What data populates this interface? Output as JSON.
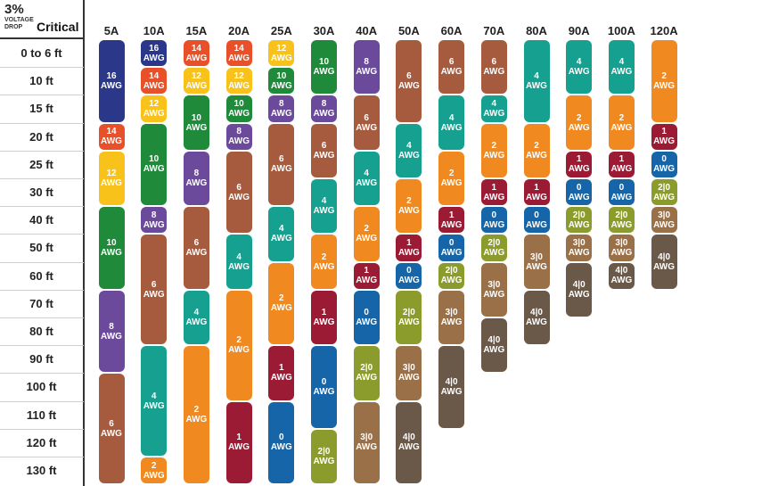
{
  "header": {
    "percent": "3%",
    "voltage": "VOLTAGE",
    "drop": "DROP",
    "critical": "Critical"
  },
  "chart_data": {
    "type": "table",
    "columns": [
      "5A",
      "10A",
      "15A",
      "20A",
      "25A",
      "30A",
      "40A",
      "50A",
      "60A",
      "70A",
      "80A",
      "90A",
      "100A",
      "120A"
    ],
    "rows": [
      "0 to 6 ft",
      "10 ft",
      "15 ft",
      "20 ft",
      "25 ft",
      "30 ft",
      "40 ft",
      "50 ft",
      "60 ft",
      "70 ft",
      "80 ft",
      "90 ft",
      "100 ft",
      "110 ft",
      "120 ft",
      "130 ft"
    ],
    "unit": "AWG",
    "colors": {
      "16": "#2b3788",
      "14": "#e8502a",
      "12": "#f8c21a",
      "10": "#1e8a3a",
      "8": "#6b4a9c",
      "6": "#a65b3e",
      "4": "#15a08f",
      "2": "#f0891f",
      "1": "#9b1b34",
      "0": "#1565a8",
      "2|0": "#8c9c2c",
      "3|0": "#9a7048",
      "4|0": "#6a5848"
    },
    "cells": [
      [
        {
          "g": "16",
          "s": 0,
          "e": 3
        },
        {
          "g": "14",
          "s": 3,
          "e": 4
        },
        {
          "g": "12",
          "s": 4,
          "e": 6
        },
        {
          "g": "10",
          "s": 6,
          "e": 9
        },
        {
          "g": "8",
          "s": 9,
          "e": 12
        },
        {
          "g": "6",
          "s": 12,
          "e": 16
        }
      ],
      [
        {
          "g": "16",
          "s": 0,
          "e": 1
        },
        {
          "g": "14",
          "s": 1,
          "e": 2
        },
        {
          "g": "12",
          "s": 2,
          "e": 3
        },
        {
          "g": "10",
          "s": 3,
          "e": 6
        },
        {
          "g": "8",
          "s": 6,
          "e": 7
        },
        {
          "g": "6",
          "s": 7,
          "e": 11
        },
        {
          "g": "4",
          "s": 11,
          "e": 15
        },
        {
          "g": "2",
          "s": 15,
          "e": 16
        }
      ],
      [
        {
          "g": "14",
          "s": 0,
          "e": 1
        },
        {
          "g": "12",
          "s": 1,
          "e": 2
        },
        {
          "g": "10",
          "s": 2,
          "e": 4
        },
        {
          "g": "8",
          "s": 4,
          "e": 6
        },
        {
          "g": "6",
          "s": 6,
          "e": 9
        },
        {
          "g": "4",
          "s": 9,
          "e": 11
        },
        {
          "g": "2",
          "s": 11,
          "e": 16
        }
      ],
      [
        {
          "g": "14",
          "s": 0,
          "e": 1
        },
        {
          "g": "12",
          "s": 1,
          "e": 2
        },
        {
          "g": "10",
          "s": 2,
          "e": 3
        },
        {
          "g": "8",
          "s": 3,
          "e": 4
        },
        {
          "g": "6",
          "s": 4,
          "e": 7
        },
        {
          "g": "4",
          "s": 7,
          "e": 9
        },
        {
          "g": "2",
          "s": 9,
          "e": 13
        },
        {
          "g": "1",
          "s": 13,
          "e": 16
        }
      ],
      [
        {
          "g": "12",
          "s": 0,
          "e": 1
        },
        {
          "g": "10",
          "s": 1,
          "e": 2
        },
        {
          "g": "8",
          "s": 2,
          "e": 3
        },
        {
          "g": "6",
          "s": 3,
          "e": 6
        },
        {
          "g": "4",
          "s": 6,
          "e": 8
        },
        {
          "g": "2",
          "s": 8,
          "e": 11
        },
        {
          "g": "1",
          "s": 11,
          "e": 13
        },
        {
          "g": "0",
          "s": 13,
          "e": 16
        }
      ],
      [
        {
          "g": "10",
          "s": 0,
          "e": 2
        },
        {
          "g": "8",
          "s": 2,
          "e": 3
        },
        {
          "g": "6",
          "s": 3,
          "e": 5
        },
        {
          "g": "4",
          "s": 5,
          "e": 7
        },
        {
          "g": "2",
          "s": 7,
          "e": 9
        },
        {
          "g": "1",
          "s": 9,
          "e": 11
        },
        {
          "g": "0",
          "s": 11,
          "e": 14
        },
        {
          "g": "2|0",
          "s": 14,
          "e": 16
        }
      ],
      [
        {
          "g": "8",
          "s": 0,
          "e": 2
        },
        {
          "g": "6",
          "s": 2,
          "e": 4
        },
        {
          "g": "4",
          "s": 4,
          "e": 6
        },
        {
          "g": "2",
          "s": 6,
          "e": 8
        },
        {
          "g": "1",
          "s": 8,
          "e": 9
        },
        {
          "g": "0",
          "s": 9,
          "e": 11
        },
        {
          "g": "2|0",
          "s": 11,
          "e": 13
        },
        {
          "g": "3|0",
          "s": 13,
          "e": 16
        }
      ],
      [
        {
          "g": "6",
          "s": 0,
          "e": 3
        },
        {
          "g": "4",
          "s": 3,
          "e": 5
        },
        {
          "g": "2",
          "s": 5,
          "e": 7
        },
        {
          "g": "1",
          "s": 7,
          "e": 8
        },
        {
          "g": "0",
          "s": 8,
          "e": 9
        },
        {
          "g": "2|0",
          "s": 9,
          "e": 11
        },
        {
          "g": "3|0",
          "s": 11,
          "e": 13
        },
        {
          "g": "4|0",
          "s": 13,
          "e": 16
        }
      ],
      [
        {
          "g": "6",
          "s": 0,
          "e": 2
        },
        {
          "g": "4",
          "s": 2,
          "e": 4
        },
        {
          "g": "2",
          "s": 4,
          "e": 6
        },
        {
          "g": "1",
          "s": 6,
          "e": 7
        },
        {
          "g": "0",
          "s": 7,
          "e": 8
        },
        {
          "g": "2|0",
          "s": 8,
          "e": 9
        },
        {
          "g": "3|0",
          "s": 9,
          "e": 11
        },
        {
          "g": "4|0",
          "s": 11,
          "e": 14
        }
      ],
      [
        {
          "g": "6",
          "s": 0,
          "e": 2
        },
        {
          "g": "4",
          "s": 2,
          "e": 3
        },
        {
          "g": "2",
          "s": 3,
          "e": 5
        },
        {
          "g": "1",
          "s": 5,
          "e": 6
        },
        {
          "g": "0",
          "s": 6,
          "e": 7
        },
        {
          "g": "2|0",
          "s": 7,
          "e": 8
        },
        {
          "g": "3|0",
          "s": 8,
          "e": 10
        },
        {
          "g": "4|0",
          "s": 10,
          "e": 12
        }
      ],
      [
        {
          "g": "4",
          "s": 0,
          "e": 3
        },
        {
          "g": "2",
          "s": 3,
          "e": 5
        },
        {
          "g": "1",
          "s": 5,
          "e": 6
        },
        {
          "g": "0",
          "s": 6,
          "e": 7
        },
        {
          "g": "3|0",
          "s": 7,
          "e": 9
        },
        {
          "g": "4|0",
          "s": 9,
          "e": 11
        }
      ],
      [
        {
          "g": "4",
          "s": 0,
          "e": 2
        },
        {
          "g": "2",
          "s": 2,
          "e": 4
        },
        {
          "g": "1",
          "s": 4,
          "e": 5
        },
        {
          "g": "0",
          "s": 5,
          "e": 6
        },
        {
          "g": "2|0",
          "s": 6,
          "e": 7
        },
        {
          "g": "3|0",
          "s": 7,
          "e": 8
        },
        {
          "g": "4|0",
          "s": 8,
          "e": 10
        }
      ],
      [
        {
          "g": "4",
          "s": 0,
          "e": 2
        },
        {
          "g": "2",
          "s": 2,
          "e": 4
        },
        {
          "g": "1",
          "s": 4,
          "e": 5
        },
        {
          "g": "0",
          "s": 5,
          "e": 6
        },
        {
          "g": "2|0",
          "s": 6,
          "e": 7
        },
        {
          "g": "3|0",
          "s": 7,
          "e": 8
        },
        {
          "g": "4|0",
          "s": 8,
          "e": 9
        }
      ],
      [
        {
          "g": "2",
          "s": 0,
          "e": 3
        },
        {
          "g": "1",
          "s": 3,
          "e": 4
        },
        {
          "g": "0",
          "s": 4,
          "e": 5
        },
        {
          "g": "2|0",
          "s": 5,
          "e": 6
        },
        {
          "g": "3|0",
          "s": 6,
          "e": 7
        },
        {
          "g": "4|0",
          "s": 7,
          "e": 9
        }
      ]
    ]
  }
}
